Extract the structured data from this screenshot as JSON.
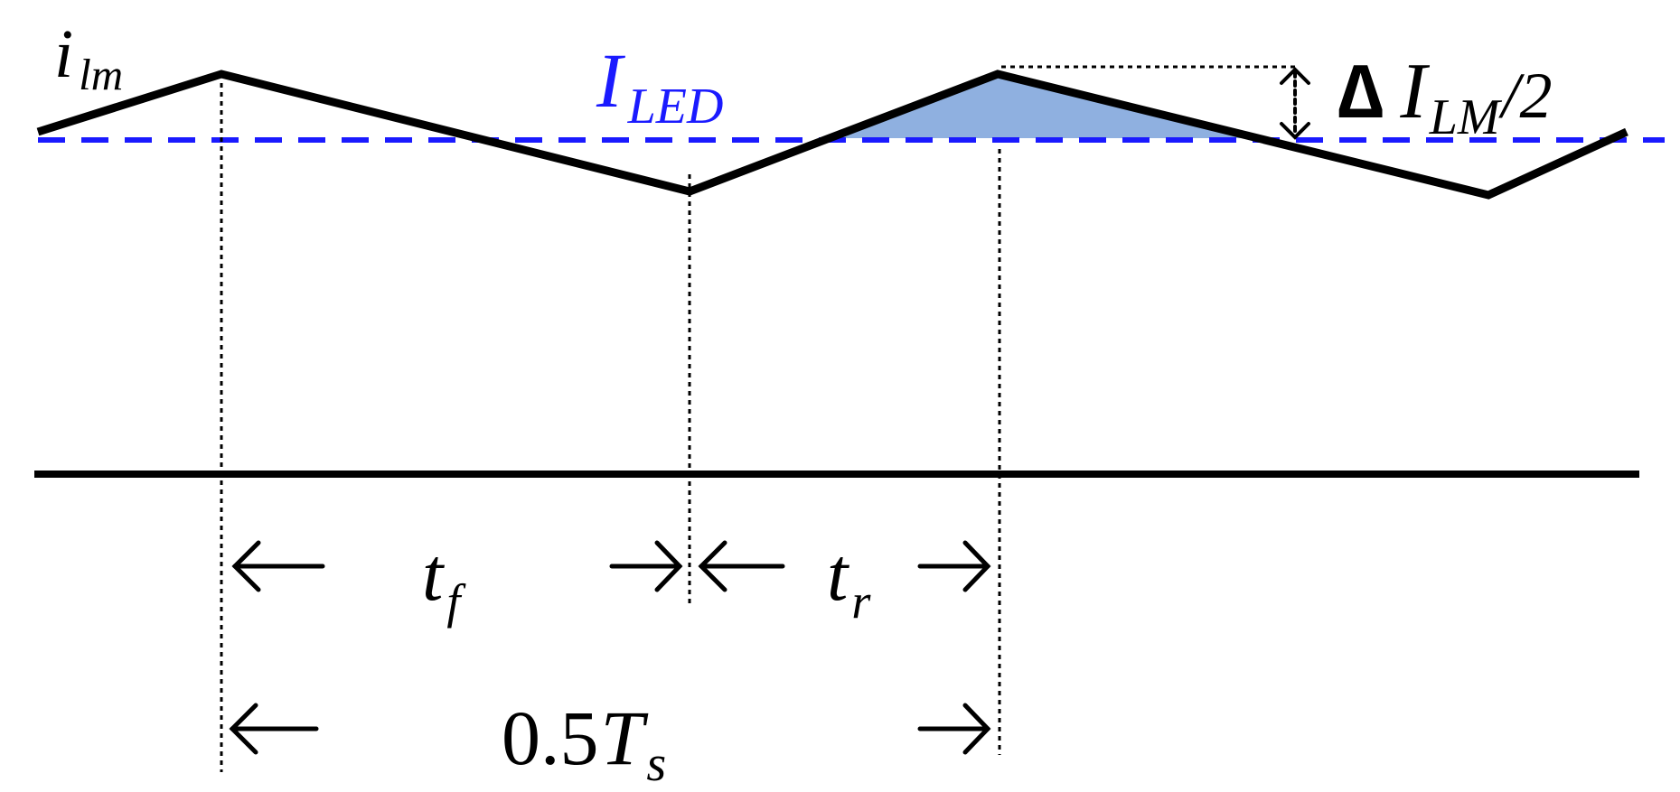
{
  "labels": {
    "ilm": {
      "main": "i",
      "sub": "lm"
    },
    "iled": {
      "main": "I",
      "sub": "LED"
    },
    "delta": {
      "symbol": "∆",
      "main": "I",
      "sub": "LM",
      "suffix": "/2"
    },
    "tf": {
      "main": "t",
      "sub": "f"
    },
    "tr": {
      "main": "t",
      "sub": "r"
    },
    "period": {
      "prefix": "0.5",
      "main": "T",
      "sub": "s"
    }
  },
  "colors": {
    "waveform": "#000000",
    "led_reference": "#1a1aff",
    "fill": "#8fb0e0",
    "guides": "#000000",
    "text_dark": "#000000",
    "text_blue": "#1a1aff"
  },
  "icons": {
    "time_arrow_left": "left-arrow-icon",
    "time_arrow_right": "right-arrow-icon",
    "delta_arrow": "double-headed-vertical-arrow-icon"
  }
}
